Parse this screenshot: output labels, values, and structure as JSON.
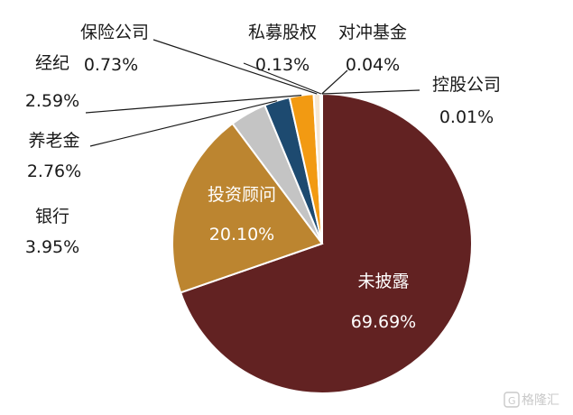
{
  "chart_data": {
    "type": "pie",
    "title": "",
    "slices": [
      {
        "name": "未披露",
        "value": 69.69,
        "label": "69.69%",
        "color": "#622222"
      },
      {
        "name": "投资顾问",
        "value": 20.1,
        "label": "20.10%",
        "color": "#bc8530"
      },
      {
        "name": "银行",
        "value": 3.95,
        "label": "3.95%",
        "color": "#c4c4c4"
      },
      {
        "name": "养老金",
        "value": 2.76,
        "label": "2.76%",
        "color": "#1d4a70"
      },
      {
        "name": "经纪",
        "value": 2.59,
        "label": "2.59%",
        "color": "#f29a12"
      },
      {
        "name": "保险公司",
        "value": 0.73,
        "label": "0.73%",
        "color": "#f6e7d3"
      },
      {
        "name": "私募股权",
        "value": 0.13,
        "label": "0.13%",
        "color": "#333333"
      },
      {
        "name": "对冲基金",
        "value": 0.04,
        "label": "0.04%",
        "color": "#555555"
      },
      {
        "name": "控股公司",
        "value": 0.01,
        "label": "0.01%",
        "color": "#777777"
      }
    ],
    "start_angle": "12 o'clock",
    "direction": "clockwise"
  },
  "watermark": {
    "text": "格隆汇",
    "icon": "g-logo-icon"
  }
}
